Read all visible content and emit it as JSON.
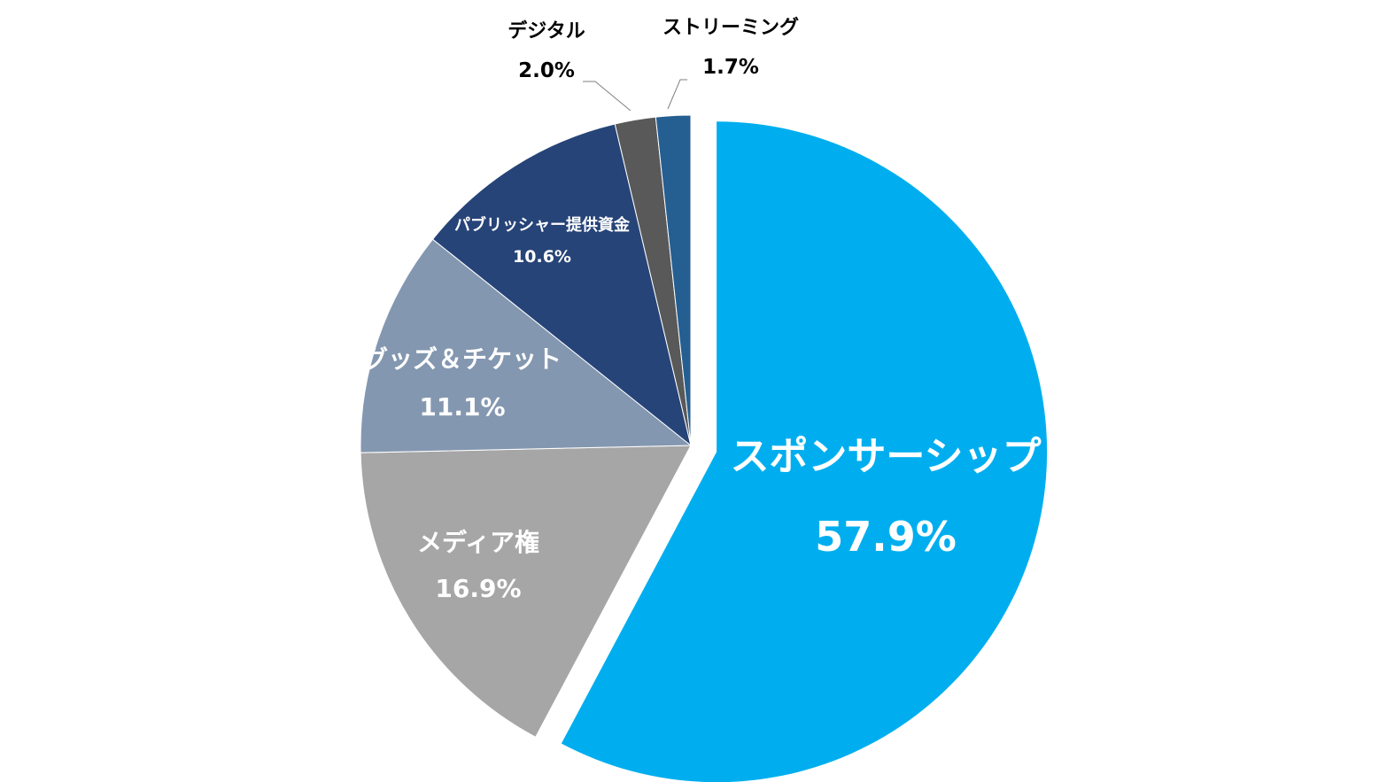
{
  "chart_data": {
    "type": "pie",
    "title": "",
    "start_angle_deg": 0,
    "direction": "clockwise",
    "slices": [
      {
        "label": "スポンサーシップ",
        "value": 57.9,
        "value_label": "57.9%",
        "color": "#00AEEF",
        "label_color": "#FFFFFF",
        "exploded": true
      },
      {
        "label": "メディア権",
        "value": 16.9,
        "value_label": "16.9%",
        "color": "#A6A6A6",
        "label_color": "#FFFFFF",
        "exploded": false
      },
      {
        "label": "グッズ＆チケット",
        "value": 11.1,
        "value_label": "11.1%",
        "color": "#8497B0",
        "label_color": "#FFFFFF",
        "exploded": false
      },
      {
        "label": "パブリッシャー提供資金",
        "value": 10.6,
        "value_label": "10.6%",
        "color": "#264478",
        "label_color": "#FFFFFF",
        "exploded": false
      },
      {
        "label": "デジタル",
        "value": 2.0,
        "value_label": "2.0%",
        "color": "#595959",
        "label_color": "#000000",
        "exploded": false
      },
      {
        "label": "ストリーミング",
        "value": 1.7,
        "value_label": "1.7%",
        "color": "#255E91",
        "label_color": "#000000",
        "exploded": false
      }
    ]
  }
}
